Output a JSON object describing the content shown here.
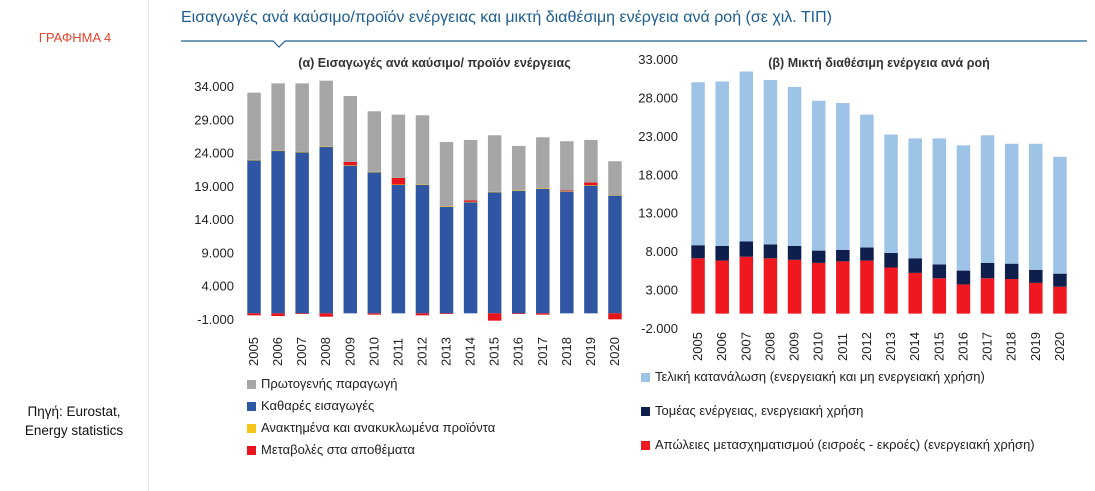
{
  "figure_label": "ΓΡΑΦΗΜΑ 4",
  "main_title": "Εισαγωγές ανά καύσιμο/προϊόν ενέργειας και μικτή διαθέσιμη ενέργεια ανά ροή (σε χιλ. ΤΙΠ)",
  "source": {
    "line1": "Πηγή: Eurostat,",
    "line2": "Energy statistics"
  },
  "colors": {
    "title": "#1d5d8f",
    "figure_label": "#e2452f",
    "primary_production": "#a6a6a6",
    "net_imports": "#2e56a3",
    "recovered": "#f5c518",
    "stock_changes": "#e8141b",
    "final_consumption": "#9dc3e6",
    "energy_sector": "#0e1f4d",
    "transformation_losses": "#f01820"
  },
  "chart_data": [
    {
      "type": "bar",
      "stacked": true,
      "title": "(α) Εισαγωγές ανά καύσιμο/ προϊόν ενέργειας",
      "categories": [
        "2005",
        "2006",
        "2007",
        "2008",
        "2009",
        "2010",
        "2011",
        "2012",
        "2013",
        "2014",
        "2015",
        "2016",
        "2017",
        "2018",
        "2019",
        "2020"
      ],
      "ylim": [
        -1000,
        34000
      ],
      "yticks": [
        -1000,
        4000,
        9000,
        14000,
        19000,
        24000,
        29000,
        34000
      ],
      "ytick_labels": [
        "-1.000",
        "4.000",
        "9.000",
        "14.000",
        "19.000",
        "24.000",
        "29.000",
        "34.000"
      ],
      "grid": false,
      "legend_position": "bottom",
      "series": [
        {
          "name": "Πρωτογενής παραγωγή",
          "values": [
            10100,
            10100,
            10300,
            9900,
            9900,
            9100,
            9500,
            10400,
            9700,
            9100,
            8500,
            6700,
            7700,
            7400,
            6400,
            5100
          ]
        },
        {
          "name": "Καθαρές εισαγωγές",
          "values": [
            23000,
            24400,
            24200,
            25000,
            22200,
            21200,
            19300,
            19300,
            16000,
            16700,
            18200,
            18400,
            18700,
            18300,
            19200,
            17700
          ]
        },
        {
          "name": "Ανακτημένα και ανακυκλωμένα προϊόντα",
          "values": [
            50,
            50,
            50,
            50,
            50,
            50,
            50,
            50,
            50,
            50,
            50,
            50,
            50,
            50,
            50,
            50
          ]
        },
        {
          "name": "Μεταβολές στα αποθέματα",
          "values": [
            -300,
            -400,
            -100,
            -500,
            500,
            -200,
            1000,
            -300,
            -100,
            200,
            -1100,
            -100,
            -200,
            100,
            400,
            -900
          ]
        }
      ]
    },
    {
      "type": "bar",
      "stacked": true,
      "title": "(β) Μικτή διαθέσιμη ενέργεια ανά ροή",
      "categories": [
        "2005",
        "2006",
        "2007",
        "2008",
        "2009",
        "2010",
        "2011",
        "2012",
        "2013",
        "2014",
        "2015",
        "2016",
        "2017",
        "2018",
        "2019",
        "2020"
      ],
      "ylim": [
        -2000,
        33000
      ],
      "yticks": [
        -2000,
        3000,
        8000,
        13000,
        18000,
        23000,
        28000,
        33000
      ],
      "ytick_labels": [
        "-2.000",
        "3.000",
        "8.000",
        "13.000",
        "18.000",
        "23.000",
        "28.000",
        "33.000"
      ],
      "grid": false,
      "legend_position": "bottom",
      "series": [
        {
          "name": "Απώλειες μετασχηματισμού (εισροές - εκροές) (ενεργειακή χρήση)",
          "values": [
            7200,
            6900,
            7400,
            7200,
            7000,
            6600,
            6800,
            6900,
            6000,
            5300,
            4600,
            3800,
            4600,
            4500,
            4000,
            3500
          ]
        },
        {
          "name": "Τομέας ενέργειας, ενεργειακή χρήση",
          "values": [
            1700,
            1900,
            2000,
            1800,
            1800,
            1600,
            1500,
            1700,
            1900,
            1900,
            1800,
            1800,
            2000,
            2000,
            1700,
            1700
          ]
        },
        {
          "name": "Τελική κατανάλωση (ενεργειακή και μη ενεργειακή χρήση)",
          "values": [
            21200,
            21400,
            22100,
            21400,
            20700,
            19500,
            19100,
            17300,
            15400,
            15600,
            16400,
            16300,
            16600,
            15600,
            16400,
            15200
          ]
        }
      ]
    }
  ]
}
